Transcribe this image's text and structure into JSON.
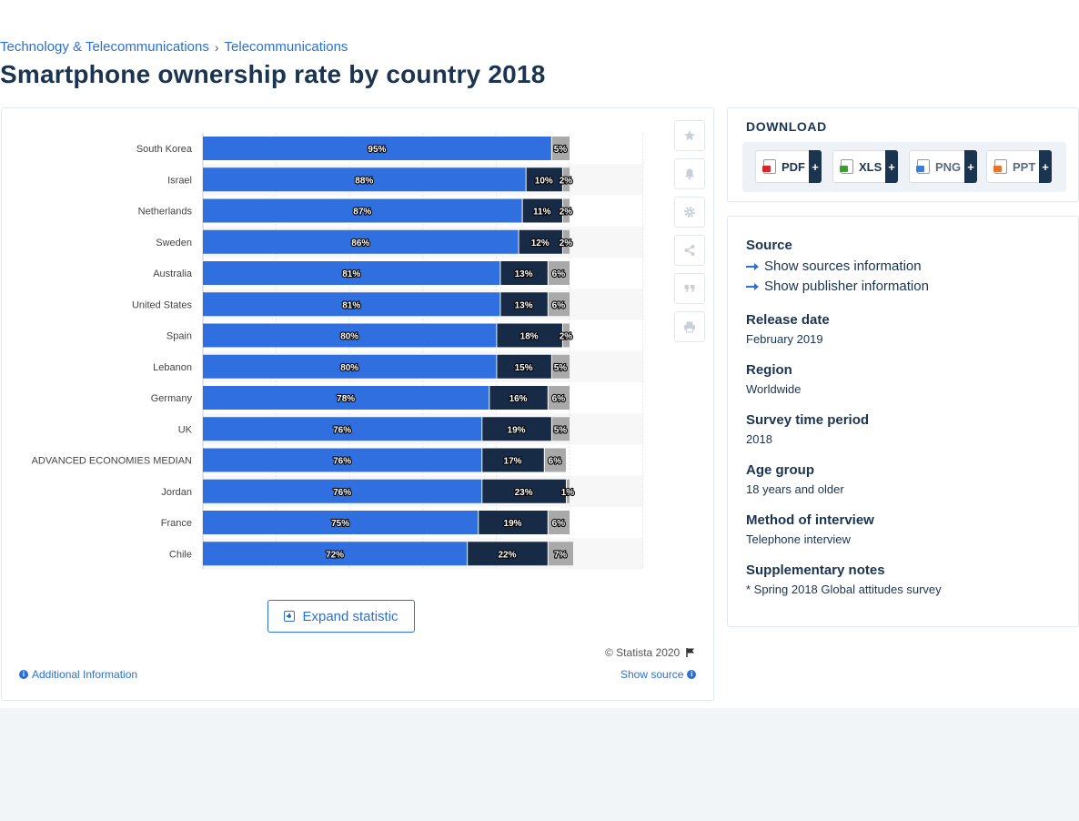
{
  "breadcrumb": {
    "items": [
      "Technology & Telecommunications",
      "Telecommunications"
    ],
    "separator": "›"
  },
  "page_title": "Smartphone ownership rate by country 2018",
  "chart_data": {
    "type": "bar",
    "orientation": "horizontal",
    "stacked": true,
    "categories": [
      "South Korea",
      "Israel",
      "Netherlands",
      "Sweden",
      "Australia",
      "United States",
      "Spain",
      "Lebanon",
      "Germany",
      "UK",
      "ADVANCED ECONOMIES MEDIAN",
      "Jordan",
      "France",
      "Chile"
    ],
    "series": [
      {
        "values": [
          95,
          88,
          87,
          86,
          81,
          81,
          80,
          80,
          78,
          76,
          76,
          76,
          75,
          72
        ],
        "color": "#2f6fe0"
      },
      {
        "values": [
          null,
          10,
          11,
          12,
          13,
          13,
          18,
          15,
          16,
          19,
          17,
          23,
          19,
          22
        ],
        "color": "#182b46"
      },
      {
        "values": [
          5,
          2,
          2,
          2,
          6,
          6,
          2,
          5,
          6,
          5,
          6,
          1,
          6,
          7
        ],
        "color": "#a9a9a9"
      }
    ],
    "value_suffix": "%",
    "xlim": [
      0,
      120
    ],
    "grid": true,
    "legend": "none"
  },
  "buttons": {
    "expand": "Expand statistic"
  },
  "footer": {
    "copyright": "© Statista 2020",
    "additional_info": "Additional Information",
    "show_source": "Show source"
  },
  "toolbar": [
    "star-icon",
    "bell-icon",
    "gear-icon",
    "share-icon",
    "quote-icon",
    "print-icon"
  ],
  "download": {
    "title": "DOWNLOAD",
    "formats": [
      {
        "label": "PDF",
        "color": "#d9262c"
      },
      {
        "label": "XLS",
        "color": "#3e9b35"
      },
      {
        "label": "PNG",
        "color": "#3b7fd6"
      },
      {
        "label": "PPT",
        "color": "#e2762a"
      }
    ],
    "plus": "+"
  },
  "info": {
    "source_label": "Source",
    "source_link": "Show sources information",
    "publisher_link": "Show publisher information",
    "release_label": "Release date",
    "release_value": "February 2019",
    "region_label": "Region",
    "region_value": "Worldwide",
    "survey_label": "Survey time period",
    "survey_value": "2018",
    "age_label": "Age group",
    "age_value": "18 years and older",
    "method_label": "Method of interview",
    "method_value": "Telephone interview",
    "notes_label": "Supplementary notes",
    "notes_value": "* Spring 2018 Global attitudes survey"
  }
}
